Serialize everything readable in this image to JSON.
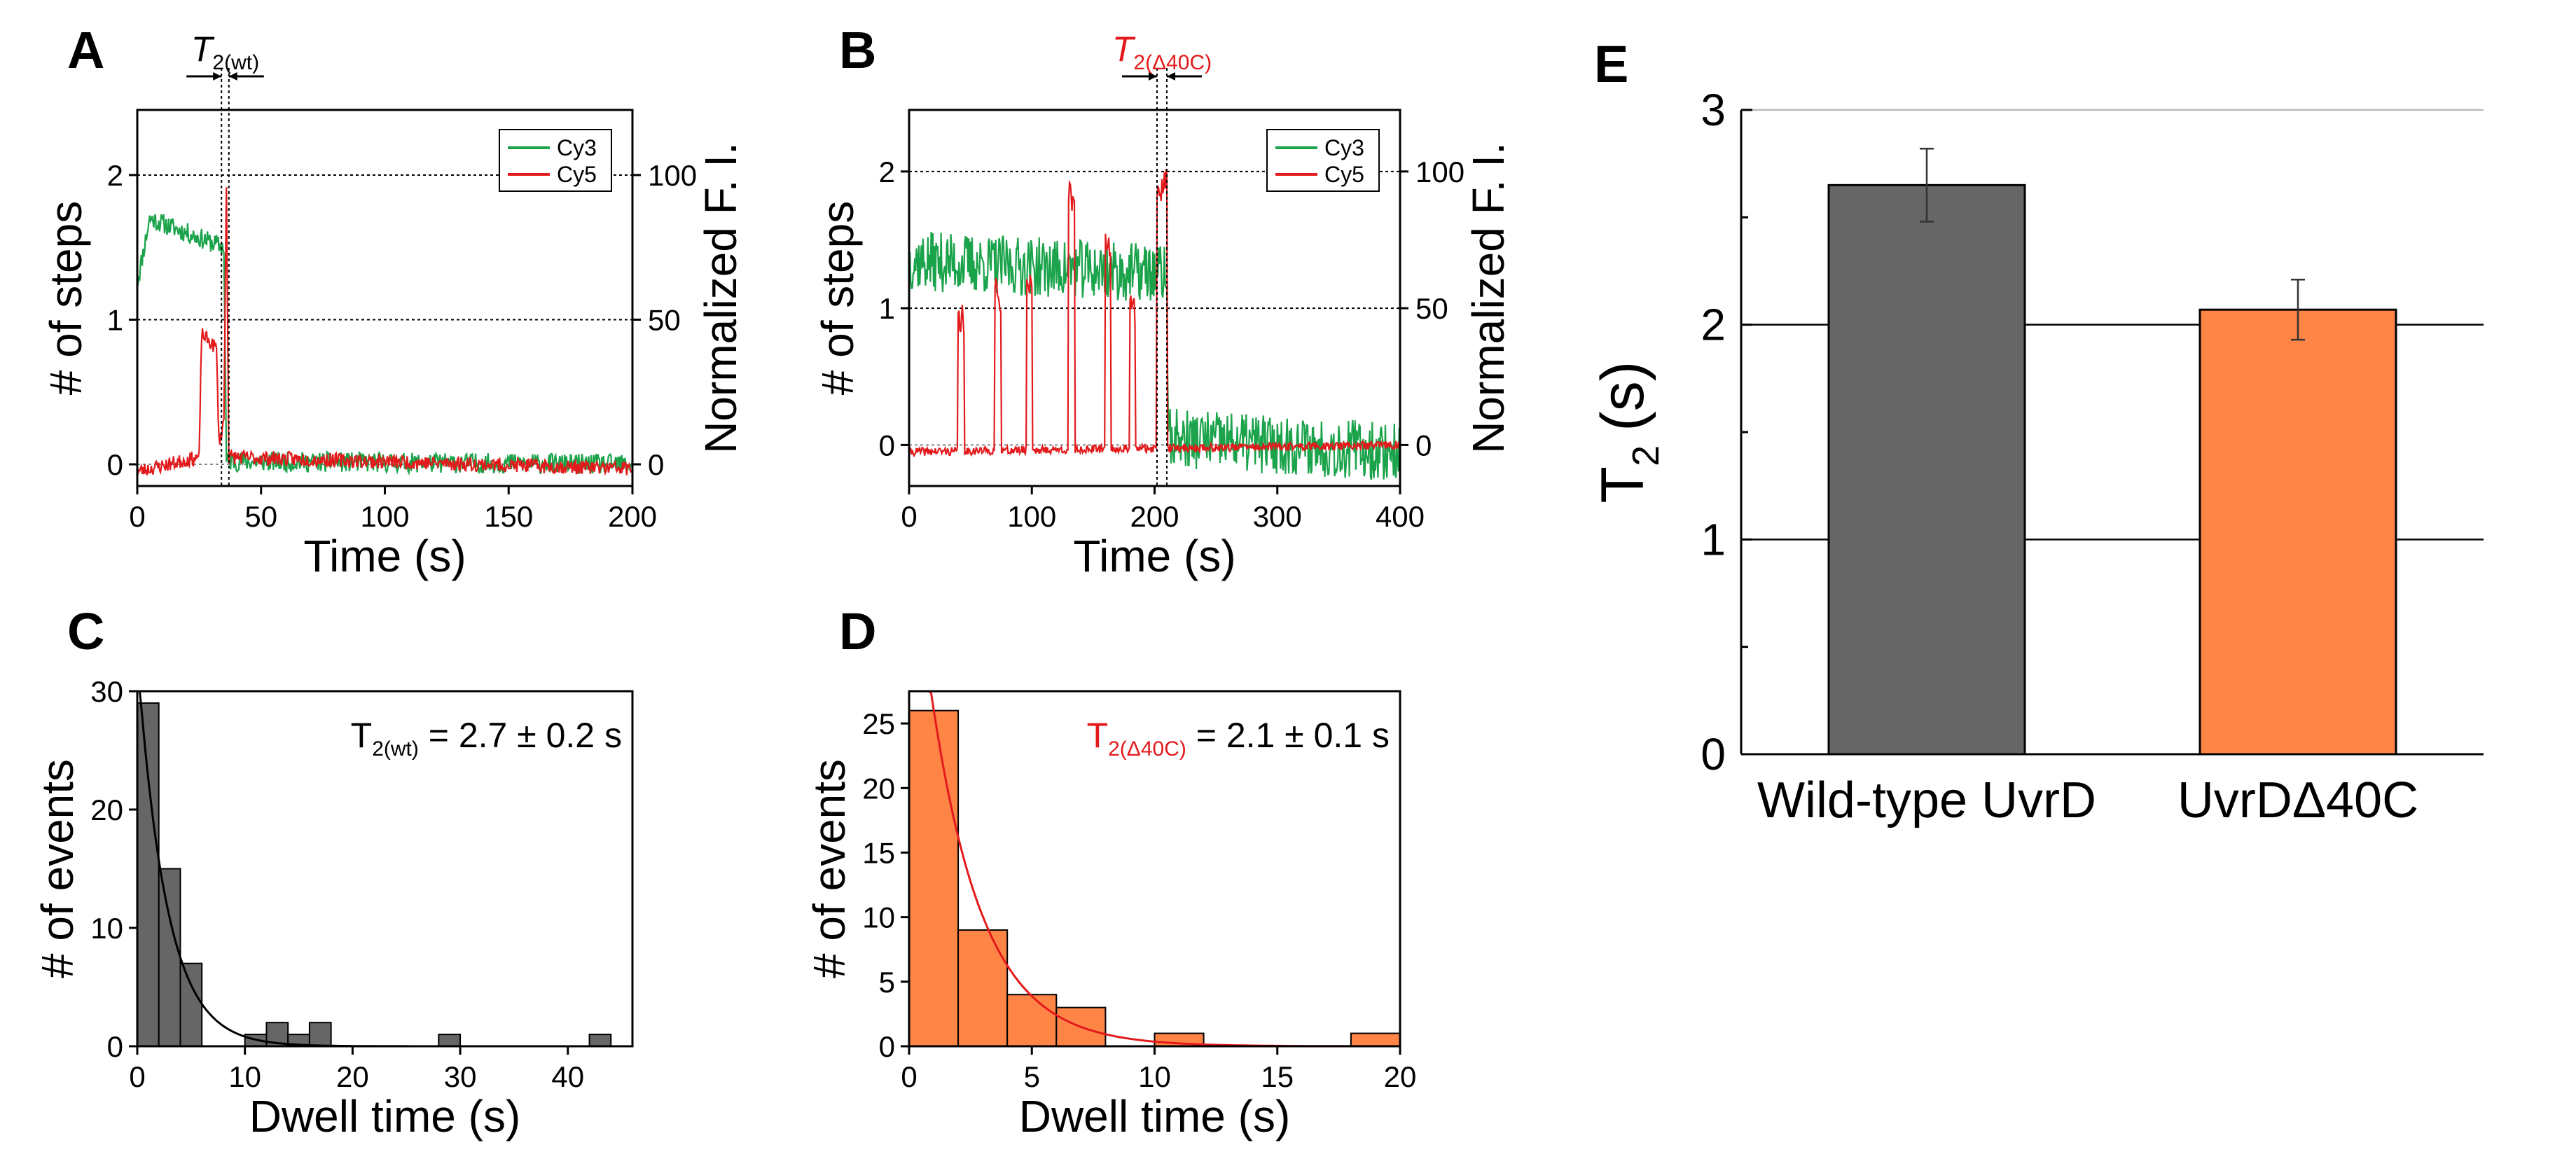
{
  "colors": {
    "cy3": "#1aa34a",
    "cy5": "#e31a1c",
    "gray_bar": "#666666",
    "orange_bar": "#ff8547",
    "red_text": "#e31a1c",
    "fit_dark": "#000000",
    "fit_red": "#e31a1c"
  },
  "panels": {
    "A": {
      "letter": "A",
      "tau_symbol": "T",
      "tau_sub": "2(wt)"
    },
    "B": {
      "letter": "B",
      "tau_symbol": "T",
      "tau_sub": "2(Δ40C)"
    },
    "C": {
      "letter": "C",
      "ann_symbol": "T",
      "ann_sub": "2(wt)",
      "ann_value": " = 2.7 ± 0.2 s"
    },
    "D": {
      "letter": "D",
      "ann_symbol": "T",
      "ann_sub": "2(Δ40C)",
      "ann_value": " = 2.1 ± 0.1 s"
    },
    "E": {
      "letter": "E"
    }
  },
  "chart_data": [
    {
      "id": "A",
      "type": "line",
      "xlabel": "Time (s)",
      "ylabel": "# of steps",
      "ylabel_right": "Normalized F. I.",
      "xlim": [
        0,
        200
      ],
      "ylim": [
        -0.15,
        2.45
      ],
      "xticks": [
        0,
        50,
        100,
        150,
        200
      ],
      "xtick_labels": [
        "0",
        "50",
        "100",
        "150",
        "200"
      ],
      "yticks": [
        0,
        1,
        2
      ],
      "ytick_labels": [
        "0",
        "1",
        "2"
      ],
      "yticks_right": [
        0,
        1,
        2
      ],
      "ytick_labels_right": [
        "0",
        "50",
        "100"
      ],
      "legend": [
        "Cy3",
        "Cy5"
      ],
      "legend_position": "top-right",
      "tau_window": [
        34,
        37
      ],
      "series": [
        {
          "name": "Cy3",
          "segments": [
            [
              0,
              1.25,
              5,
              1.7,
              35,
              1.5
            ],
            [
              35,
              1.5,
              36,
              0.02
            ],
            [
              36,
              0.02,
              200,
              0
            ]
          ],
          "noise": 0.07,
          "seed": 11
        },
        {
          "name": "Cy5",
          "segments": [
            [
              0,
              -0.05,
              25,
              0.05
            ],
            [
              25,
              0.05,
              26,
              0.9
            ],
            [
              26,
              0.9,
              32,
              0.8
            ],
            [
              32,
              0.8,
              33,
              0.15
            ],
            [
              33,
              0.15,
              35,
              0.3
            ],
            [
              35,
              0.3,
              36,
              1.95
            ],
            [
              36,
              1.95,
              37,
              0.05
            ],
            [
              37,
              0.05,
              200,
              -0.03
            ]
          ],
          "noise": 0.05,
          "seed": 23
        }
      ]
    },
    {
      "id": "B",
      "type": "line",
      "xlabel": "Time (s)",
      "ylabel": "# of steps",
      "ylabel_right": "Normalized F. I.",
      "xlim": [
        0,
        400
      ],
      "ylim": [
        -0.3,
        2.45
      ],
      "xticks": [
        0,
        100,
        200,
        300,
        400
      ],
      "xtick_labels": [
        "0",
        "100",
        "200",
        "300",
        "400"
      ],
      "yticks": [
        0,
        1,
        2
      ],
      "ytick_labels": [
        "0",
        "1",
        "2"
      ],
      "yticks_right": [
        0,
        1,
        2
      ],
      "ytick_labels_right": [
        "0",
        "50",
        "100"
      ],
      "legend": [
        "Cy3",
        "Cy5"
      ],
      "legend_position": "top-right",
      "tau_window": [
        202,
        210
      ],
      "series": [
        {
          "name": "Cy3",
          "segments": [
            [
              0,
              1.35,
              210,
              1.25
            ],
            [
              210,
              1.25,
              211,
              0.05
            ],
            [
              211,
              0.05,
              400,
              -0.05
            ]
          ],
          "noise": 0.22,
          "seed": 37
        },
        {
          "name": "Cy5",
          "segments": [
            [
              0,
              -0.05,
              400,
              0
            ]
          ],
          "noise": 0.03,
          "seed": 41,
          "spikes": [
            [
              40,
              45,
              0.9
            ],
            [
              70,
              75,
              1.1
            ],
            [
              96,
              100,
              1.2
            ],
            [
              130,
              135,
              1.8
            ],
            [
              160,
              164,
              1.5
            ],
            [
              180,
              184,
              1.0
            ],
            [
              202,
              210,
              1.9
            ]
          ]
        }
      ]
    },
    {
      "id": "C",
      "type": "bar",
      "xlabel": "Dwell time (s)",
      "ylabel": "# of events",
      "xlim": [
        0,
        46
      ],
      "ylim": [
        0,
        30
      ],
      "xticks": [
        0,
        10,
        20,
        30,
        40
      ],
      "xtick_labels": [
        "0",
        "10",
        "20",
        "30",
        "40"
      ],
      "yticks": [
        0,
        10,
        20,
        30
      ],
      "ytick_labels": [
        "0",
        "10",
        "20",
        "30"
      ],
      "bin_width": 2,
      "bins": [
        0,
        2,
        4,
        10,
        12,
        14,
        16,
        28,
        42
      ],
      "values": [
        29,
        15,
        7,
        1,
        2,
        1,
        2,
        1,
        1
      ],
      "fit": {
        "A": 33,
        "tau": 2.7
      }
    },
    {
      "id": "D",
      "type": "bar",
      "xlabel": "Dwell time (s)",
      "ylabel": "# of events",
      "xlim": [
        0,
        20
      ],
      "ylim": [
        0,
        27.5
      ],
      "xticks": [
        0,
        5,
        10,
        15,
        20
      ],
      "xtick_labels": [
        "0",
        "5",
        "10",
        "15",
        "20"
      ],
      "yticks": [
        0,
        5,
        10,
        15,
        20,
        25
      ],
      "ytick_labels": [
        "0",
        "5",
        "10",
        "15",
        "20",
        "25"
      ],
      "bin_width": 2,
      "bins": [
        0,
        2,
        4,
        6,
        10,
        18
      ],
      "values": [
        26,
        9,
        4,
        3,
        1,
        1
      ],
      "fit": {
        "A": 42,
        "tau": 2.1
      }
    },
    {
      "id": "E",
      "type": "bar",
      "ylabel": "T",
      "ylabel_sub": "2",
      "ylabel_unit": "(s)",
      "ylim": [
        0,
        3
      ],
      "yticks": [
        0,
        1,
        2,
        3
      ],
      "ytick_labels": [
        "0",
        "1",
        "2",
        "3"
      ],
      "categories": [
        "Wild-type UvrD",
        "UvrDΔ40C"
      ],
      "values": [
        2.65,
        2.07
      ],
      "errors": [
        0.17,
        0.14
      ]
    }
  ]
}
